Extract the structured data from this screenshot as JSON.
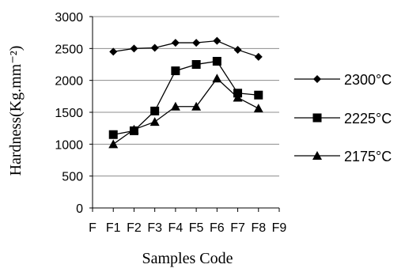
{
  "chart_data": {
    "type": "line",
    "title": "",
    "xlabel": "Samples Code",
    "ylabel": "Hardness(Kg.mm⁻²)",
    "ylim": [
      0,
      3000
    ],
    "y_ticks": [
      0,
      500,
      1000,
      1500,
      2000,
      2500,
      3000
    ],
    "x_ticks": [
      "F",
      "F1",
      "F2",
      "F3",
      "F4",
      "F5",
      "F6",
      "F7",
      "F8",
      "F9"
    ],
    "categories": [
      "F1",
      "F2",
      "F3",
      "F4",
      "F5",
      "F6",
      "F7",
      "F8"
    ],
    "grid": "horizontal",
    "legend_position": "right",
    "series": [
      {
        "name": "2300°C",
        "marker": "diamond",
        "values": [
          2450,
          2500,
          2510,
          2590,
          2590,
          2620,
          2480,
          2370
        ]
      },
      {
        "name": "2225°C",
        "marker": "square",
        "values": [
          1150,
          1210,
          1520,
          2150,
          2250,
          2300,
          1800,
          1770
        ]
      },
      {
        "name": "2175°C",
        "marker": "triangle",
        "values": [
          1000,
          1230,
          1350,
          1590,
          1590,
          2030,
          1730,
          1560
        ]
      }
    ],
    "colors": {
      "line": "#000000",
      "grid": "#8c8c8c"
    }
  }
}
